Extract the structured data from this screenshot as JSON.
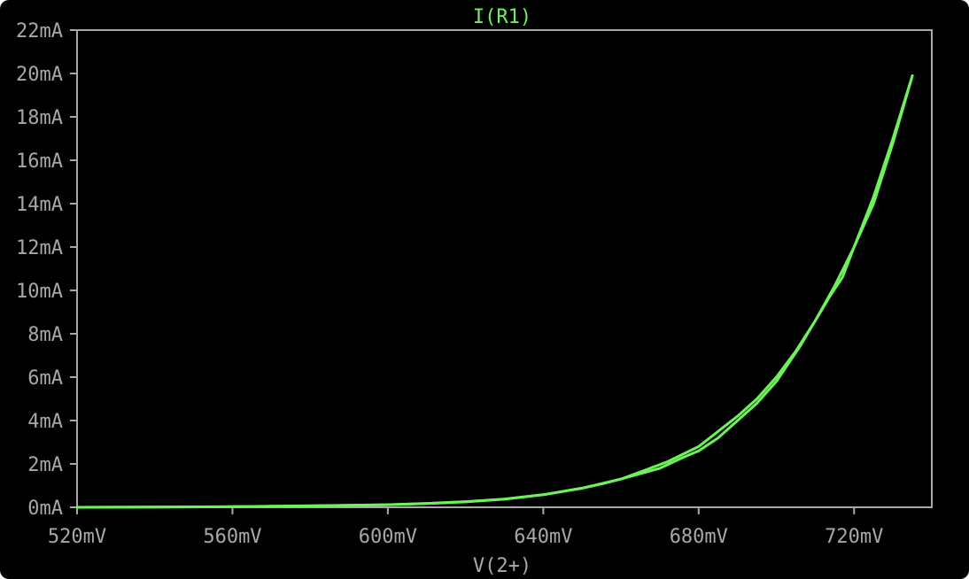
{
  "chart_data": {
    "type": "line",
    "title": "I(R1)",
    "xlabel": "V(2+)",
    "ylabel": "",
    "xlim": [
      520,
      740
    ],
    "ylim": [
      0,
      22
    ],
    "x_unit": "mV",
    "y_unit": "mA",
    "x_ticks": [
      "520mV",
      "560mV",
      "600mV",
      "640mV",
      "680mV",
      "720mV"
    ],
    "y_ticks": [
      "0mA",
      "2mA",
      "4mA",
      "6mA",
      "8mA",
      "10mA",
      "12mA",
      "14mA",
      "16mA",
      "18mA",
      "20mA",
      "22mA"
    ],
    "grid": false,
    "series": [
      {
        "color": "#6ef25a",
        "x": [
          520,
          540,
          560,
          580,
          600,
          610,
          620,
          630,
          640,
          650,
          656,
          660,
          666,
          672,
          680,
          690,
          695,
          700,
          705,
          710,
          715,
          720,
          725,
          730,
          735
        ],
        "y": [
          0.0,
          0.01,
          0.03,
          0.07,
          0.12,
          0.17,
          0.25,
          0.38,
          0.58,
          0.88,
          1.12,
          1.3,
          1.7,
          2.1,
          2.8,
          4.2,
          5.0,
          6.0,
          7.2,
          8.6,
          10.2,
          12.0,
          14.3,
          17.0,
          19.9
        ]
      },
      {
        "color": "#6ef25a",
        "x": [
          735,
          730,
          725,
          720,
          717,
          714,
          710,
          706,
          700,
          695,
          690,
          685,
          680,
          676,
          670,
          660,
          650,
          640,
          630,
          620,
          610,
          600,
          590,
          580,
          560,
          540,
          520
        ],
        "y": [
          19.9,
          16.8,
          14.0,
          12.0,
          10.6,
          9.8,
          8.6,
          7.4,
          5.8,
          4.8,
          4.0,
          3.2,
          2.6,
          2.3,
          1.8,
          1.3,
          0.88,
          0.58,
          0.38,
          0.26,
          0.18,
          0.12,
          0.09,
          0.06,
          0.03,
          0.01,
          0.0
        ]
      }
    ]
  }
}
